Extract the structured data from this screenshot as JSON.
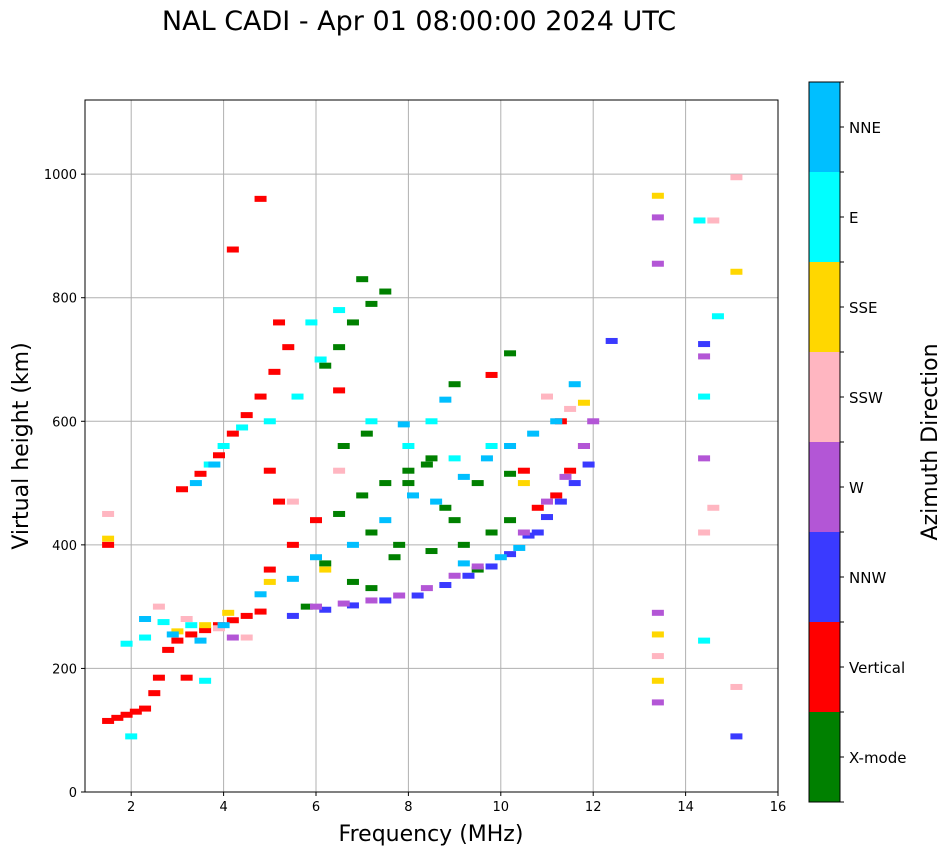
{
  "chart_data": {
    "type": "scatter",
    "title": "NAL CADI - Apr 01 08:00:00 2024 UTC",
    "xlabel": "Frequency (MHz)",
    "ylabel": "Virtual height (km)",
    "colorbar_label": "Azimuth Direction",
    "xlim": [
      1,
      16
    ],
    "ylim": [
      0,
      1120
    ],
    "xticks": [
      2,
      4,
      6,
      8,
      10,
      12,
      14,
      16
    ],
    "yticks": [
      0,
      200,
      400,
      600,
      800,
      1000
    ],
    "grid": true,
    "categories": [
      {
        "name": "X-mode",
        "color": "#008000"
      },
      {
        "name": "Vertical",
        "color": "#ff0000"
      },
      {
        "name": "NNW",
        "color": "#3a3aff"
      },
      {
        "name": "W",
        "color": "#b356d6"
      },
      {
        "name": "SSW",
        "color": "#ffb6c1"
      },
      {
        "name": "SSE",
        "color": "#ffd700"
      },
      {
        "name": "E",
        "color": "#00ffff"
      },
      {
        "name": "NNE",
        "color": "#00bfff"
      }
    ],
    "series": [
      {
        "name": "Vertical",
        "points": [
          [
            1.5,
            115
          ],
          [
            1.7,
            120
          ],
          [
            1.9,
            125
          ],
          [
            2.1,
            130
          ],
          [
            2.3,
            135
          ],
          [
            2.5,
            160
          ],
          [
            2.6,
            185
          ],
          [
            2.8,
            230
          ],
          [
            3.0,
            245
          ],
          [
            3.3,
            255
          ],
          [
            3.6,
            262
          ],
          [
            3.9,
            270
          ],
          [
            4.2,
            278
          ],
          [
            4.5,
            285
          ],
          [
            4.8,
            292
          ],
          [
            3.1,
            490
          ],
          [
            3.5,
            515
          ],
          [
            3.9,
            545
          ],
          [
            4.2,
            580
          ],
          [
            4.5,
            610
          ],
          [
            4.8,
            640
          ],
          [
            5.1,
            680
          ],
          [
            5.4,
            720
          ],
          [
            5.2,
            760
          ],
          [
            4.8,
            960
          ],
          [
            4.2,
            878
          ],
          [
            5.0,
            520
          ],
          [
            5.2,
            470
          ],
          [
            6.0,
            440
          ],
          [
            5.5,
            400
          ],
          [
            5.0,
            360
          ],
          [
            10.8,
            460
          ],
          [
            11.2,
            480
          ],
          [
            11.5,
            520
          ],
          [
            11.8,
            560
          ],
          [
            11.3,
            600
          ],
          [
            10.5,
            520
          ],
          [
            9.8,
            675
          ],
          [
            3.2,
            185
          ],
          [
            1.5,
            400
          ],
          [
            6.5,
            650
          ]
        ]
      },
      {
        "name": "X-mode",
        "points": [
          [
            6.5,
            450
          ],
          [
            7.0,
            480
          ],
          [
            7.5,
            500
          ],
          [
            8.0,
            520
          ],
          [
            8.5,
            540
          ],
          [
            7.2,
            420
          ],
          [
            7.8,
            400
          ],
          [
            8.5,
            390
          ],
          [
            9.2,
            400
          ],
          [
            9.8,
            420
          ],
          [
            10.2,
            440
          ],
          [
            8.8,
            460
          ],
          [
            9.5,
            500
          ],
          [
            10.2,
            515
          ],
          [
            9.0,
            440
          ],
          [
            6.2,
            370
          ],
          [
            6.8,
            340
          ],
          [
            7.2,
            330
          ],
          [
            6.6,
            560
          ],
          [
            7.1,
            580
          ],
          [
            8.0,
            500
          ],
          [
            6.2,
            690
          ],
          [
            6.5,
            720
          ],
          [
            6.8,
            760
          ],
          [
            7.2,
            790
          ],
          [
            7.5,
            810
          ],
          [
            7.0,
            830
          ],
          [
            10.2,
            710
          ],
          [
            9.0,
            660
          ],
          [
            8.4,
            530
          ],
          [
            7.7,
            380
          ],
          [
            9.5,
            360
          ],
          [
            5.8,
            300
          ]
        ]
      },
      {
        "name": "NNW",
        "points": [
          [
            5.5,
            285
          ],
          [
            6.2,
            295
          ],
          [
            6.8,
            302
          ],
          [
            7.5,
            310
          ],
          [
            8.2,
            318
          ],
          [
            8.8,
            335
          ],
          [
            9.3,
            350
          ],
          [
            9.8,
            365
          ],
          [
            10.2,
            385
          ],
          [
            10.6,
            415
          ],
          [
            11.0,
            445
          ],
          [
            11.3,
            470
          ],
          [
            11.6,
            500
          ],
          [
            11.9,
            530
          ],
          [
            10.8,
            420
          ],
          [
            12.4,
            730
          ],
          [
            14.4,
            725
          ],
          [
            15.1,
            90
          ]
        ]
      },
      {
        "name": "W",
        "points": [
          [
            6.0,
            300
          ],
          [
            6.6,
            305
          ],
          [
            7.2,
            310
          ],
          [
            7.8,
            318
          ],
          [
            8.4,
            330
          ],
          [
            9.0,
            350
          ],
          [
            9.5,
            365
          ],
          [
            10.5,
            420
          ],
          [
            11.0,
            470
          ],
          [
            11.4,
            510
          ],
          [
            11.8,
            560
          ],
          [
            12.0,
            600
          ],
          [
            13.4,
            855
          ],
          [
            13.4,
            930
          ],
          [
            13.4,
            145
          ],
          [
            13.4,
            290
          ],
          [
            14.4,
            705
          ],
          [
            14.4,
            540
          ],
          [
            4.2,
            250
          ]
        ]
      },
      {
        "name": "SSW",
        "points": [
          [
            2.6,
            300
          ],
          [
            3.2,
            280
          ],
          [
            3.9,
            265
          ],
          [
            4.5,
            250
          ],
          [
            5.5,
            470
          ],
          [
            6.5,
            520
          ],
          [
            11.5,
            620
          ],
          [
            13.4,
            220
          ],
          [
            14.4,
            420
          ],
          [
            14.6,
            460
          ],
          [
            15.1,
            170
          ],
          [
            14.6,
            925
          ],
          [
            15.1,
            995
          ],
          [
            1.5,
            450
          ],
          [
            11.0,
            640
          ]
        ]
      },
      {
        "name": "SSE",
        "points": [
          [
            3.0,
            260
          ],
          [
            3.6,
            270
          ],
          [
            4.1,
            290
          ],
          [
            5.0,
            340
          ],
          [
            6.2,
            360
          ],
          [
            10.5,
            500
          ],
          [
            11.8,
            630
          ],
          [
            13.4,
            965
          ],
          [
            13.4,
            255
          ],
          [
            13.4,
            180
          ],
          [
            15.1,
            842
          ],
          [
            1.5,
            410
          ]
        ]
      },
      {
        "name": "E",
        "points": [
          [
            2.3,
            250
          ],
          [
            2.7,
            275
          ],
          [
            3.3,
            270
          ],
          [
            3.7,
            530
          ],
          [
            4.0,
            560
          ],
          [
            4.4,
            590
          ],
          [
            5.0,
            600
          ],
          [
            5.6,
            640
          ],
          [
            6.1,
            700
          ],
          [
            6.5,
            780
          ],
          [
            7.2,
            600
          ],
          [
            8.0,
            560
          ],
          [
            8.5,
            600
          ],
          [
            9.0,
            540
          ],
          [
            9.8,
            560
          ],
          [
            14.3,
            925
          ],
          [
            14.7,
            770
          ],
          [
            14.4,
            640
          ],
          [
            14.4,
            245
          ],
          [
            1.9,
            240
          ],
          [
            2.0,
            90
          ],
          [
            3.6,
            180
          ],
          [
            5.9,
            760
          ]
        ]
      },
      {
        "name": "NNE",
        "points": [
          [
            2.3,
            280
          ],
          [
            2.9,
            255
          ],
          [
            3.5,
            245
          ],
          [
            4.0,
            270
          ],
          [
            4.8,
            320
          ],
          [
            5.5,
            345
          ],
          [
            6.0,
            380
          ],
          [
            6.8,
            400
          ],
          [
            7.5,
            440
          ],
          [
            8.1,
            480
          ],
          [
            8.6,
            470
          ],
          [
            9.2,
            510
          ],
          [
            9.7,
            540
          ],
          [
            10.2,
            560
          ],
          [
            10.7,
            580
          ],
          [
            11.2,
            600
          ],
          [
            10.0,
            380
          ],
          [
            10.4,
            395
          ],
          [
            9.2,
            370
          ],
          [
            8.8,
            635
          ],
          [
            7.9,
            595
          ],
          [
            11.6,
            660
          ],
          [
            3.4,
            500
          ],
          [
            3.8,
            530
          ]
        ]
      }
    ]
  }
}
